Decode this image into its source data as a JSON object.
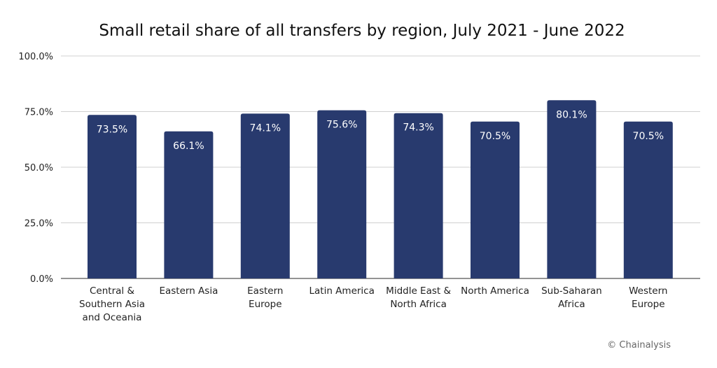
{
  "chart_data": {
    "type": "bar",
    "title": "Small retail share of all transfers by region, July 2021 - June 2022",
    "xlabel": "",
    "ylabel": "",
    "ylim": [
      0,
      100
    ],
    "yticks": [
      "0.0%",
      "25.0%",
      "50.0%",
      "75.0%",
      "100.0%"
    ],
    "grid": true,
    "categories": [
      [
        "Central &",
        "Southern Asia",
        "and Oceania"
      ],
      [
        "Eastern Asia"
      ],
      [
        "Eastern",
        "Europe"
      ],
      [
        "Latin America"
      ],
      [
        "Middle East &",
        "North Africa"
      ],
      [
        "North America"
      ],
      [
        "Sub-Saharan",
        "Africa"
      ],
      [
        "Western",
        "Europe"
      ]
    ],
    "values": [
      73.5,
      66.1,
      74.1,
      75.6,
      74.3,
      70.5,
      80.1,
      70.5
    ],
    "data_labels": [
      "73.5%",
      "66.1%",
      "74.1%",
      "75.6%",
      "74.3%",
      "70.5%",
      "80.1%",
      "70.5%"
    ],
    "bar_color": "#283a6e",
    "credit": "© Chainalysis"
  }
}
